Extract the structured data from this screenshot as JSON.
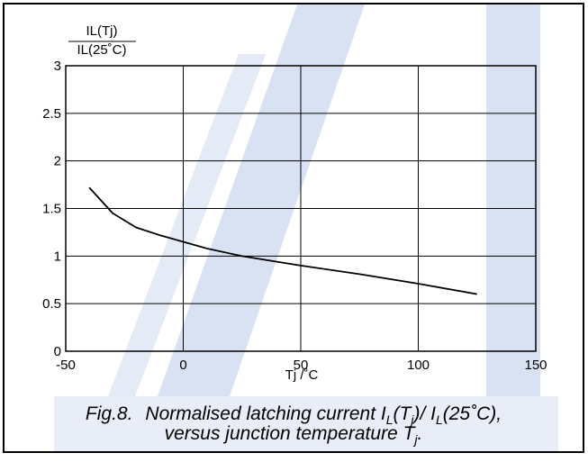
{
  "chart_data": {
    "type": "line",
    "y_label_top": "IL(Tj)",
    "y_label_bottom": "IL(25˚C)",
    "x_label": "Tj /˚C",
    "caption": {
      "line1": [
        "Fig.8.",
        "Normalised latching current I",
        "L",
        "(T",
        "j",
        ")/ I",
        "L",
        "(25˚C),"
      ],
      "line2": [
        "versus junction temperature T",
        "j",
        "."
      ]
    },
    "x": [
      -40,
      -30,
      -20,
      -10,
      0,
      10,
      25,
      50,
      75,
      100,
      125
    ],
    "series": [
      {
        "name": "IL(Tj)/IL(25˚C)",
        "color": "#000000",
        "values": [
          1.72,
          1.45,
          1.3,
          1.22,
          1.15,
          1.08,
          1.0,
          0.9,
          0.81,
          0.71,
          0.6
        ]
      }
    ],
    "xlim": [
      -50,
      150
    ],
    "xticks": [
      -50,
      0,
      50,
      100,
      150
    ],
    "ylim": [
      0,
      3
    ],
    "yticks": [
      0,
      0.5,
      1,
      1.5,
      2,
      2.5,
      3
    ],
    "grid": true
  }
}
